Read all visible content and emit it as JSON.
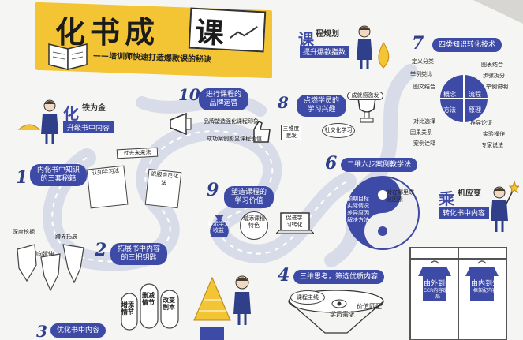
{
  "title": {
    "chars": [
      "化",
      "书",
      "成"
    ],
    "box_char": "课",
    "subtitle": "——培训师快速打造爆款课的秘诀"
  },
  "colors": {
    "navy": "#3d4aa6",
    "gold": "#f3c433",
    "paper": "#f4f4f4"
  },
  "course_planning": {
    "big": "课",
    "line1": "程规划",
    "line2": "提升爆款指数"
  },
  "sections": {
    "s1": {
      "number": "1",
      "line1": "内化书中知识",
      "line2": "的三套秘籍"
    },
    "s2": {
      "number": "2",
      "line1": "拓展书中内容",
      "line2": "的三把钥匙"
    },
    "s3": {
      "number": "3",
      "line1": "优化书中内容"
    },
    "s4": {
      "number": "4",
      "label": "三维思考，筛选优质内容"
    },
    "s6": {
      "number": "6",
      "label": "二维六步案例教学法"
    },
    "s7": {
      "number": "7",
      "label": "四类知识转化技术"
    },
    "s8": {
      "number": "8",
      "line1": "点燃学员的",
      "line2": "学习兴趣"
    },
    "s9": {
      "number": "9",
      "line1": "塑造课程的",
      "line2": "学习价值"
    },
    "s10": {
      "number": "10",
      "line1": "进行课程的",
      "line2": "品牌运营"
    }
  },
  "hua_banner": {
    "big": "化",
    "line1": "铁为金",
    "line2": "升级书中内容"
  },
  "sheng_banner": {
    "big": "乘",
    "line1": "机应变",
    "line2": "转化书中内容"
  },
  "s1_notes": {
    "past": "过去未来法",
    "recognize": "认知学习法",
    "rethink": "说服自己化法"
  },
  "s2_notes": {
    "deep": "深度挖掘",
    "cross": "跨界拓展",
    "horizontal": "横向延伸"
  },
  "s3_notes": {
    "add": "增添情节",
    "delete": "删减情节",
    "change": "改变剧本"
  },
  "s4_notes": {
    "main": "课程主线",
    "needs": "学员需求",
    "value": "价值匹配"
  },
  "s6_notes": {
    "goal": "预期目标",
    "reality": "实际情况",
    "gap": "差异原因",
    "solve": "解决方法",
    "center": "对在哪里成败因素"
  },
  "s7_notes": {
    "quadrants": [
      "概念",
      "流程",
      "方法",
      "原理"
    ],
    "tl": [
      "定义分类",
      "举例类比",
      "图文结合"
    ],
    "tr": [
      "图表结合",
      "步骤拆分",
      "举例说明"
    ],
    "bl": [
      "对比选择",
      "因果关系",
      "案例诠释"
    ],
    "br": [
      "推导论证",
      "实验操作",
      "专家说法"
    ]
  },
  "s8_notes": {
    "three": "三维度激发",
    "social": "社交化学习",
    "achieve": "成就感激发"
  },
  "s9_notes": {
    "gain": "展示学习收益",
    "enhance": "增添课程特色",
    "promote": "促进学习转化"
  },
  "s10_notes": {
    "brand": "品牌塑造强化课程印象",
    "success": "成功案例影显课程价值"
  },
  "wardrobe": {
    "left_title": "由外到内",
    "left_sub": "CCR内容定格局",
    "right_title": "由内到外",
    "right_sub": "框架配内容"
  }
}
